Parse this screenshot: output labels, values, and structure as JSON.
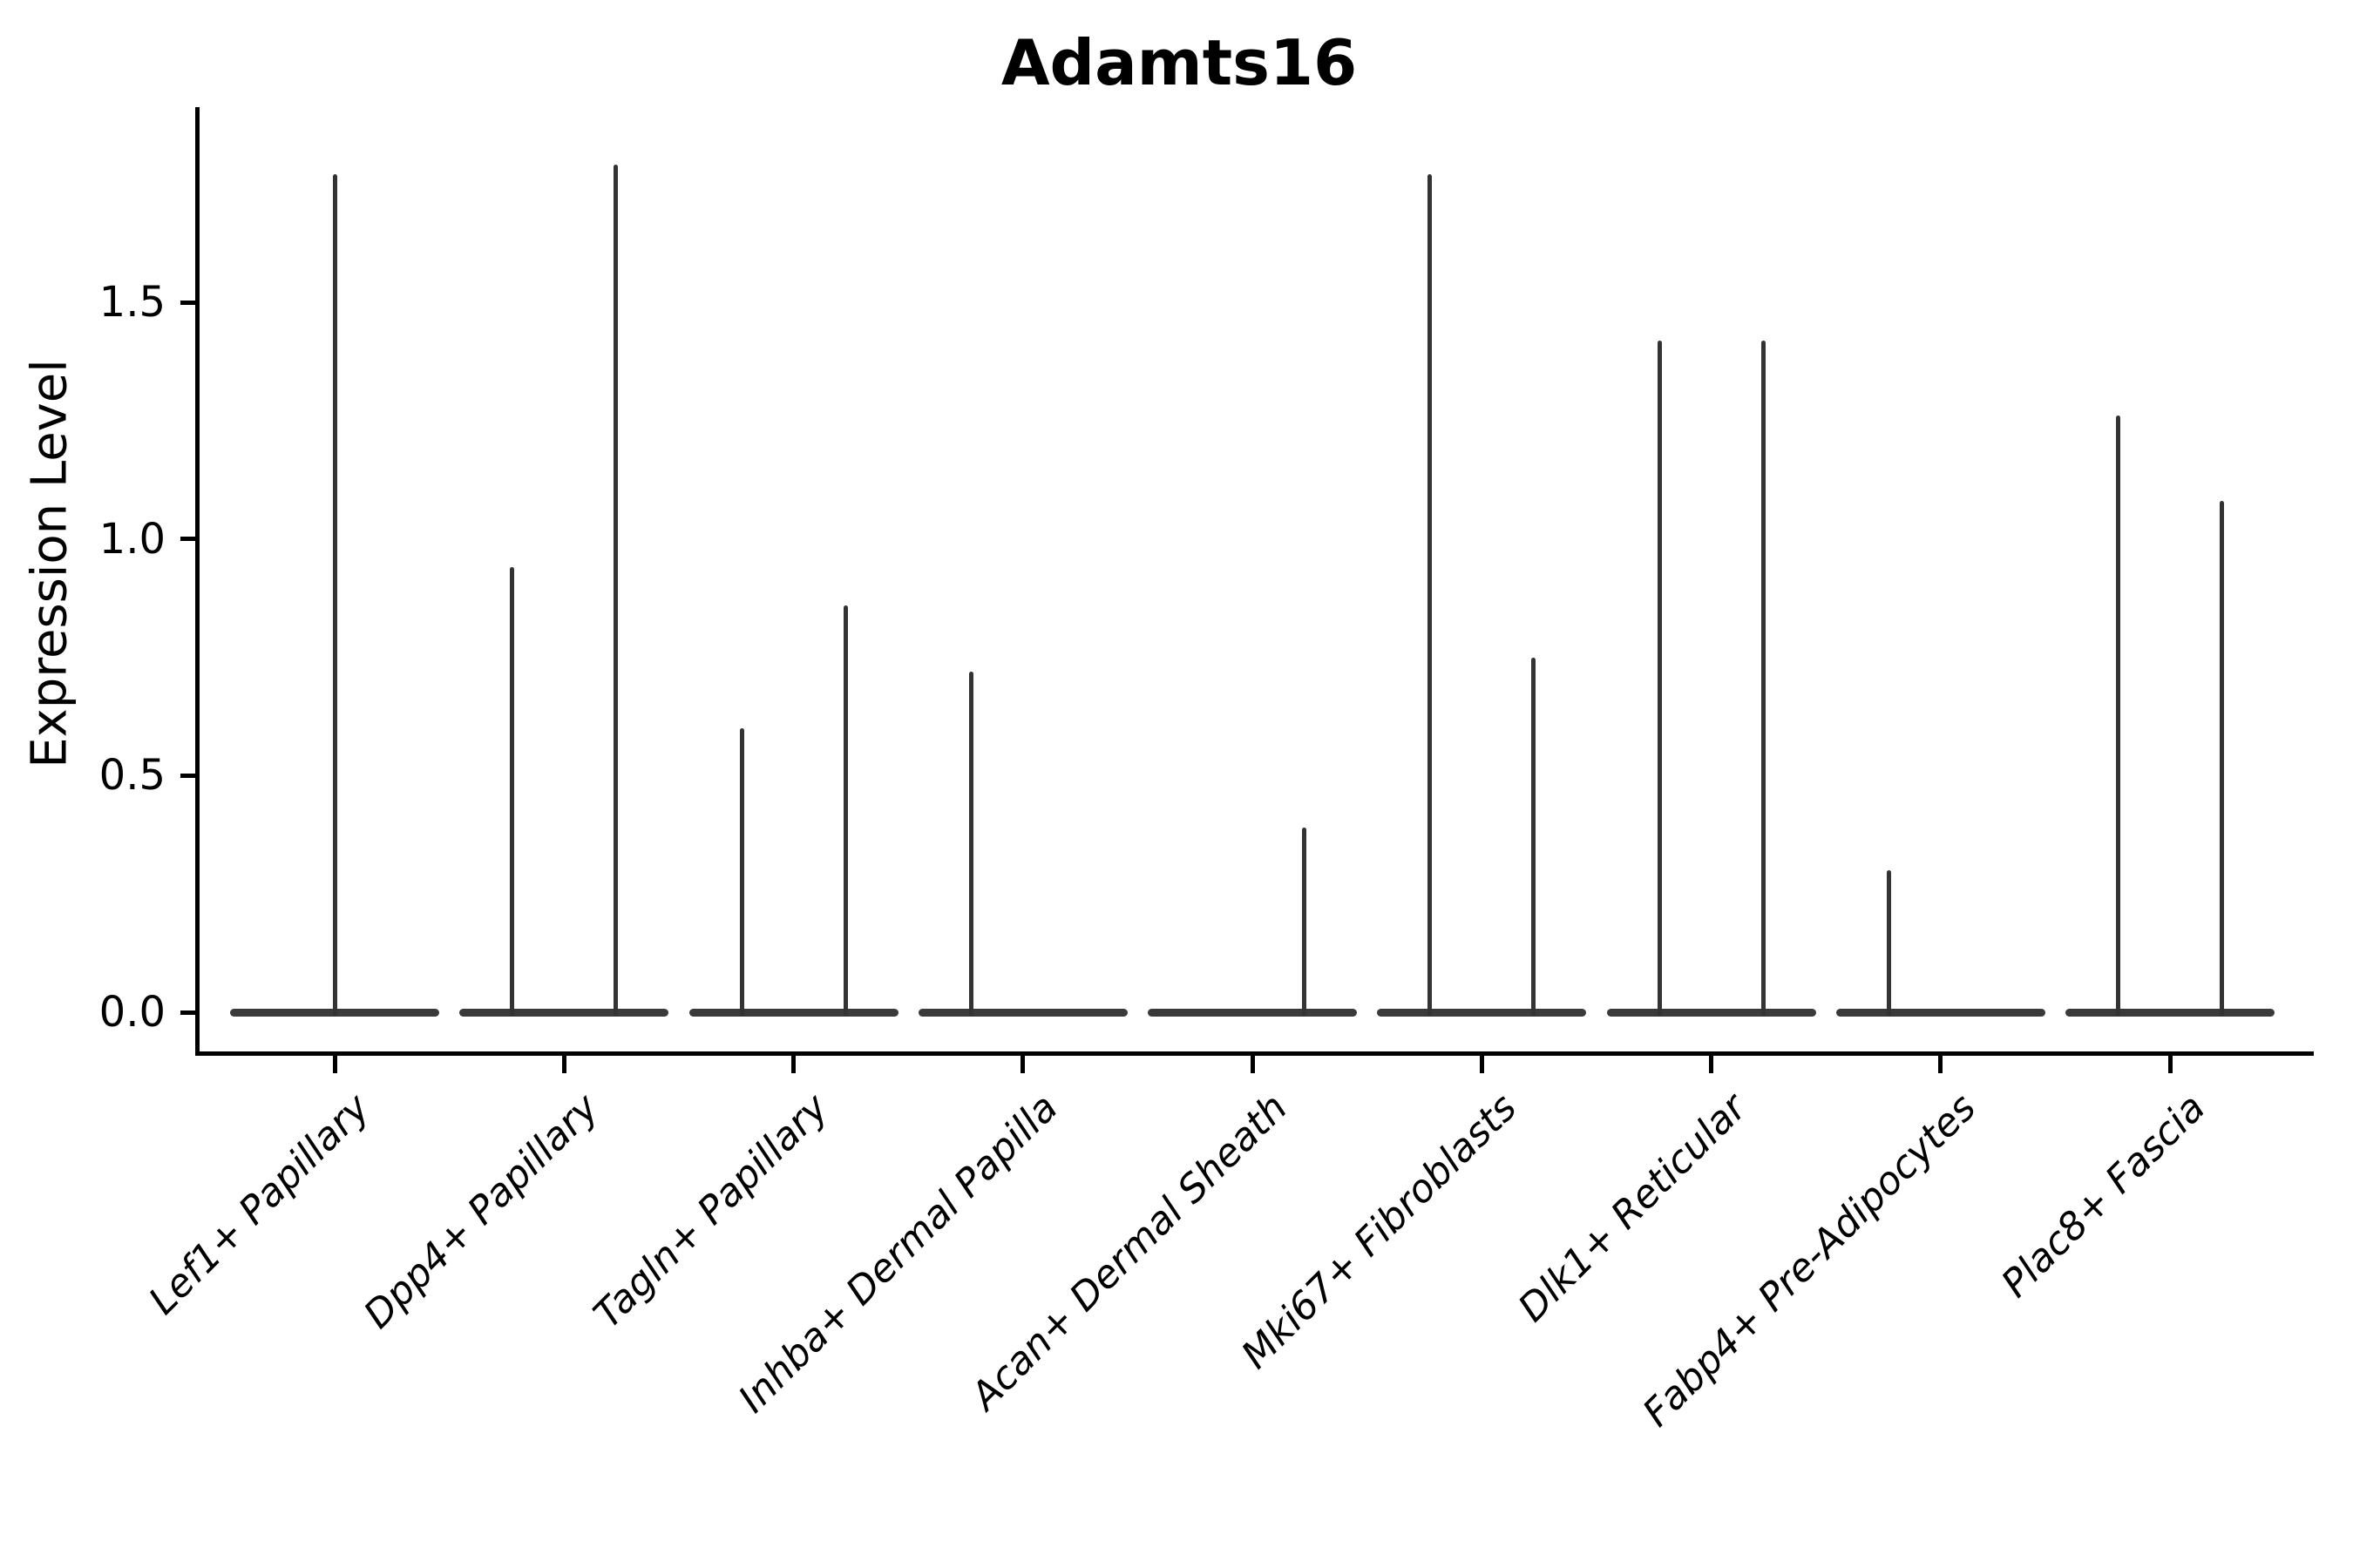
{
  "title": "Adamts16",
  "ylabel": "Expression Level",
  "colors": {
    "violin_fill": "#3a3a3a",
    "spike": "#333333",
    "spine": "#000000",
    "text": "#000000",
    "background": "#ffffff"
  },
  "chart_data": {
    "type": "violin",
    "title": "Adamts16",
    "xlabel": "",
    "ylabel": "Expression Level",
    "ylim": [
      -0.09,
      1.91
    ],
    "yticks": [
      0.0,
      0.5,
      1.0,
      1.5
    ],
    "ytick_labels": [
      "0.0",
      "0.5",
      "1.0",
      "1.5"
    ],
    "grid": false,
    "legend": null,
    "baseline_value": 0.0,
    "categories": [
      "Lef1+ Papillary",
      "Dpp4+ Papillary",
      "Tagln+ Papillary",
      "Inhba+ Dermal Papilla",
      "Acan+ Dermal Sheath",
      "Mki67+ Fibroblasts",
      "Dlk1+ Reticular",
      "Fabp4+ Pre-Adipocytes",
      "Plac8+ Fascia"
    ],
    "violins": [
      {
        "category": "Lef1+ Papillary",
        "spikes": [
          {
            "position": "center",
            "max": 1.77
          }
        ]
      },
      {
        "category": "Dpp4+ Papillary",
        "spikes": [
          {
            "position": "left",
            "max": 0.94
          },
          {
            "position": "right",
            "max": 1.79
          }
        ]
      },
      {
        "category": "Tagln+ Papillary",
        "spikes": [
          {
            "position": "left",
            "max": 0.6
          },
          {
            "position": "right",
            "max": 0.86
          }
        ]
      },
      {
        "category": "Inhba+ Dermal Papilla",
        "spikes": [
          {
            "position": "left",
            "max": 0.72
          }
        ]
      },
      {
        "category": "Acan+ Dermal Sheath",
        "spikes": [
          {
            "position": "right",
            "max": 0.39
          }
        ]
      },
      {
        "category": "Mki67+ Fibroblasts",
        "spikes": [
          {
            "position": "left",
            "max": 1.77
          },
          {
            "position": "right",
            "max": 0.75
          }
        ]
      },
      {
        "category": "Dlk1+ Reticular",
        "spikes": [
          {
            "position": "left",
            "max": 1.42
          },
          {
            "position": "right",
            "max": 1.42
          }
        ]
      },
      {
        "category": "Fabp4+ Pre-Adipocytes",
        "spikes": [
          {
            "position": "left",
            "max": 0.3
          }
        ]
      },
      {
        "category": "Plac8+ Fascia",
        "spikes": [
          {
            "position": "left",
            "max": 1.26
          },
          {
            "position": "right",
            "max": 1.08
          }
        ]
      }
    ]
  }
}
